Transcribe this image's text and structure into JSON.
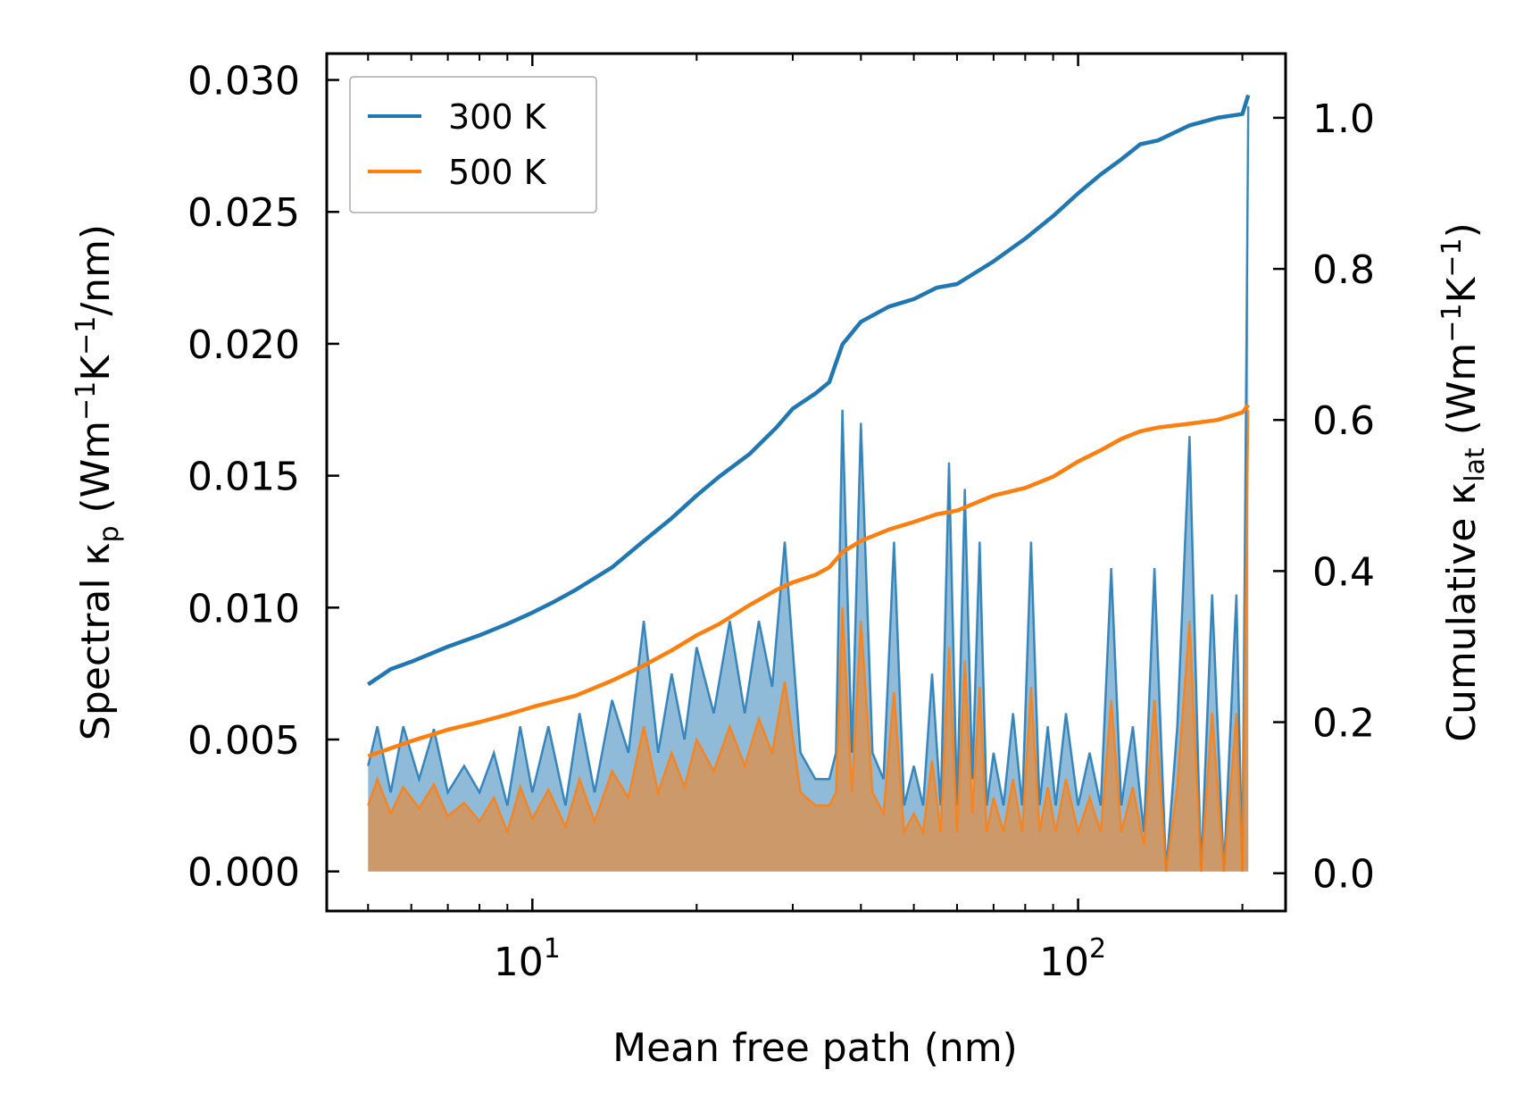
{
  "chart_data": {
    "type": "line",
    "x_scale": "log",
    "xlabel": "Mean free path (nm)",
    "ylabel_left": {
      "prefix": "Spectral κ",
      "sub": "p",
      "units": " (Wm",
      "sup1": "−1",
      "k": "K",
      "sup2": "−1",
      "end": "/nm)"
    },
    "ylabel_right": {
      "prefix": "Cumulative κ",
      "sub": "lat",
      "units": " (Wm",
      "sup1": "−1",
      "k": "K",
      "sup2": "−1",
      "end": ")"
    },
    "xlim": [
      4.2,
      240
    ],
    "ylim_left": [
      -0.0015,
      0.031
    ],
    "ylim_right": [
      -0.05,
      1.085
    ],
    "x_ticks": [
      {
        "value": 10,
        "base": "10",
        "exp": "1"
      },
      {
        "value": 100,
        "base": "10",
        "exp": "2"
      }
    ],
    "x_minor_ticks": [
      5,
      6,
      7,
      8,
      9,
      20,
      30,
      40,
      50,
      60,
      70,
      80,
      90,
      200
    ],
    "y_left_ticks": [
      {
        "value": 0.0,
        "label": "0.000"
      },
      {
        "value": 0.005,
        "label": "0.005"
      },
      {
        "value": 0.01,
        "label": "0.010"
      },
      {
        "value": 0.015,
        "label": "0.015"
      },
      {
        "value": 0.02,
        "label": "0.020"
      },
      {
        "value": 0.025,
        "label": "0.025"
      },
      {
        "value": 0.03,
        "label": "0.030"
      }
    ],
    "y_right_ticks": [
      {
        "value": 0.0,
        "label": "0.0"
      },
      {
        "value": 0.2,
        "label": "0.2"
      },
      {
        "value": 0.4,
        "label": "0.4"
      },
      {
        "value": 0.6,
        "label": "0.6"
      },
      {
        "value": 0.8,
        "label": "0.8"
      },
      {
        "value": 1.0,
        "label": "1.0"
      }
    ],
    "series": [
      {
        "name": "300 K",
        "color": "#1f77b4",
        "cumulative": {
          "x": [
            5.0,
            5.5,
            6.0,
            7.0,
            8.0,
            9.0,
            10.0,
            11.0,
            12.0,
            14.0,
            16.0,
            18.0,
            20.0,
            22.0,
            25.0,
            28.0,
            30.0,
            33.0,
            35.0,
            37.0,
            40.0,
            45.0,
            50.0,
            55.0,
            60.0,
            70.0,
            80.0,
            90.0,
            100.0,
            110.0,
            120.0,
            130.0,
            140.0,
            160.0,
            180.0,
            200.0,
            205.0
          ],
          "y": [
            0.25,
            0.27,
            0.28,
            0.3,
            0.315,
            0.33,
            0.345,
            0.36,
            0.375,
            0.405,
            0.44,
            0.47,
            0.5,
            0.525,
            0.555,
            0.59,
            0.615,
            0.635,
            0.65,
            0.7,
            0.73,
            0.75,
            0.76,
            0.775,
            0.78,
            0.81,
            0.84,
            0.87,
            0.9,
            0.925,
            0.945,
            0.965,
            0.97,
            0.99,
            1.0,
            1.005,
            1.03
          ]
        },
        "spectral": {
          "x": [
            5.0,
            5.2,
            5.5,
            5.8,
            6.2,
            6.6,
            7.0,
            7.5,
            8.0,
            8.5,
            9.0,
            9.5,
            10.0,
            10.7,
            11.5,
            12.2,
            13.0,
            14.0,
            15.0,
            16.0,
            17.0,
            18.0,
            19.0,
            20.0,
            21.5,
            23.0,
            24.5,
            26.0,
            27.5,
            29.0,
            31.0,
            33.0,
            35.0,
            36.0,
            37.0,
            38.5,
            40.0,
            42.0,
            44.0,
            46.0,
            48.0,
            50.0,
            52.0,
            54.0,
            56.0,
            58.0,
            60.0,
            62.0,
            64.0,
            66.0,
            68.0,
            70.0,
            73.0,
            76.0,
            79.0,
            82.0,
            85.0,
            88.0,
            91.0,
            95.0,
            100.0,
            105.0,
            110.0,
            115.0,
            120.0,
            126.0,
            132.0,
            138.0,
            145.0,
            152.0,
            160.0,
            168.0,
            176.0,
            185.0,
            195.0,
            200.0,
            205.0
          ],
          "y": [
            0.004,
            0.0055,
            0.003,
            0.0055,
            0.0035,
            0.0054,
            0.003,
            0.004,
            0.003,
            0.0045,
            0.0025,
            0.0055,
            0.003,
            0.0055,
            0.0025,
            0.006,
            0.003,
            0.0065,
            0.0045,
            0.0095,
            0.0045,
            0.0075,
            0.005,
            0.0085,
            0.006,
            0.0095,
            0.006,
            0.0095,
            0.007,
            0.0125,
            0.0045,
            0.0035,
            0.0035,
            0.0045,
            0.0175,
            0.0045,
            0.017,
            0.0045,
            0.0035,
            0.0125,
            0.0025,
            0.004,
            0.0025,
            0.0075,
            0.0025,
            0.0155,
            0.0025,
            0.0145,
            0.0035,
            0.0125,
            0.0025,
            0.0045,
            0.0025,
            0.006,
            0.0025,
            0.0125,
            0.0025,
            0.0055,
            0.0025,
            0.006,
            0.0025,
            0.0045,
            0.0025,
            0.0115,
            0.0025,
            0.0055,
            0.0015,
            0.0115,
            0.0,
            0.0055,
            0.0165,
            0.0,
            0.0105,
            0.0,
            0.0105,
            0.0,
            0.029
          ]
        }
      },
      {
        "name": "500 K",
        "color": "#ff7f0e",
        "cumulative": {
          "x": [
            5.0,
            6.0,
            7.0,
            8.0,
            9.0,
            10.0,
            12.0,
            14.0,
            16.0,
            18.0,
            20.0,
            22.0,
            25.0,
            28.0,
            30.0,
            33.0,
            35.0,
            37.0,
            40.0,
            45.0,
            50.0,
            55.0,
            60.0,
            70.0,
            80.0,
            90.0,
            100.0,
            110.0,
            120.0,
            130.0,
            140.0,
            160.0,
            180.0,
            200.0,
            205.0
          ],
          "y": [
            0.155,
            0.175,
            0.19,
            0.2,
            0.21,
            0.22,
            0.235,
            0.255,
            0.275,
            0.295,
            0.315,
            0.33,
            0.355,
            0.375,
            0.385,
            0.395,
            0.405,
            0.425,
            0.44,
            0.455,
            0.465,
            0.475,
            0.48,
            0.5,
            0.51,
            0.525,
            0.545,
            0.56,
            0.575,
            0.585,
            0.59,
            0.595,
            0.6,
            0.61,
            0.62
          ]
        },
        "spectral": {
          "x": [
            5.0,
            5.2,
            5.5,
            5.8,
            6.2,
            6.6,
            7.0,
            7.5,
            8.0,
            8.5,
            9.0,
            9.5,
            10.0,
            10.7,
            11.5,
            12.2,
            13.0,
            14.0,
            15.0,
            16.0,
            17.0,
            18.0,
            19.0,
            20.0,
            21.5,
            23.0,
            24.5,
            26.0,
            27.5,
            29.0,
            31.0,
            33.0,
            35.0,
            36.0,
            37.0,
            38.5,
            40.0,
            42.0,
            44.0,
            46.0,
            48.0,
            50.0,
            52.0,
            54.0,
            56.0,
            58.0,
            60.0,
            62.0,
            64.0,
            66.0,
            68.0,
            70.0,
            73.0,
            76.0,
            79.0,
            82.0,
            85.0,
            88.0,
            91.0,
            95.0,
            100.0,
            105.0,
            110.0,
            115.0,
            120.0,
            126.0,
            132.0,
            138.0,
            145.0,
            152.0,
            160.0,
            168.0,
            176.0,
            185.0,
            195.0,
            200.0,
            205.0
          ],
          "y": [
            0.0025,
            0.0035,
            0.0022,
            0.0032,
            0.0024,
            0.0033,
            0.0021,
            0.0026,
            0.0019,
            0.0028,
            0.0015,
            0.0032,
            0.002,
            0.0031,
            0.0017,
            0.0035,
            0.0019,
            0.0038,
            0.0028,
            0.0055,
            0.003,
            0.0045,
            0.0032,
            0.005,
            0.0038,
            0.0055,
            0.004,
            0.0058,
            0.0045,
            0.0072,
            0.003,
            0.0025,
            0.0025,
            0.003,
            0.01,
            0.003,
            0.0095,
            0.003,
            0.0022,
            0.0068,
            0.0015,
            0.0022,
            0.0015,
            0.0042,
            0.0015,
            0.0085,
            0.0015,
            0.008,
            0.0022,
            0.007,
            0.0015,
            0.0028,
            0.0015,
            0.0035,
            0.0015,
            0.007,
            0.0015,
            0.0032,
            0.0015,
            0.0035,
            0.0015,
            0.0028,
            0.0015,
            0.0065,
            0.0015,
            0.0032,
            0.001,
            0.0065,
            0.0,
            0.0032,
            0.0095,
            0.0,
            0.006,
            0.0,
            0.006,
            0.0,
            0.0175
          ]
        }
      }
    ],
    "legend": {
      "position": "top-left",
      "entries": [
        "300 K",
        "500 K"
      ]
    }
  }
}
